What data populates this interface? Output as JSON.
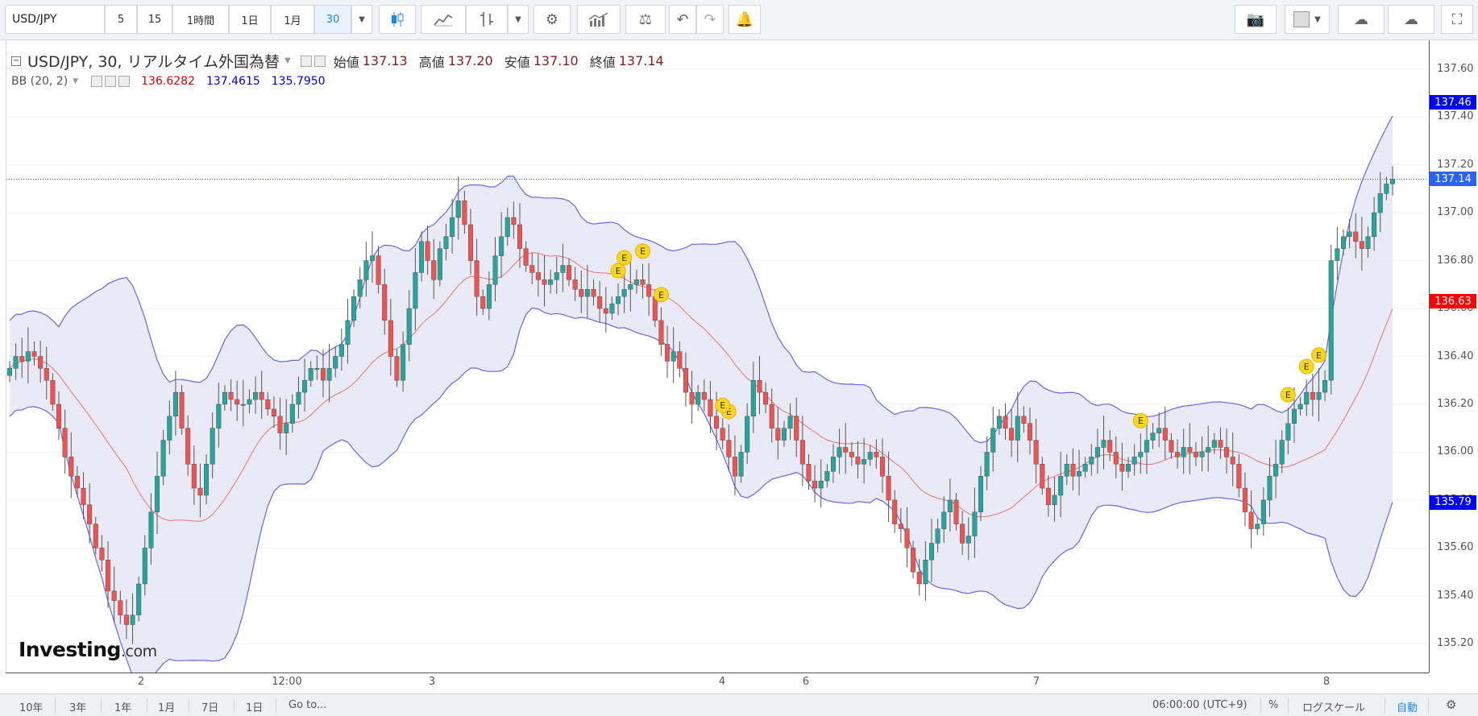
{
  "toolbar": {
    "symbol": "USD/JPY",
    "intervals": [
      "5",
      "15",
      "1時間",
      "1日",
      "1月",
      "30"
    ],
    "active_interval": "30"
  },
  "legend": {
    "title": "USD/JPY, 30, リアルタイム外国為替",
    "open_label": "始値",
    "open": "137.13",
    "high_label": "高値",
    "high": "137.20",
    "low_label": "安値",
    "low": "137.10",
    "close_label": "終値",
    "close": "137.14",
    "bb_label": "BB (20, 2)",
    "bb_mid": "136.6282",
    "bb_upper": "137.4615",
    "bb_lower": "135.7950"
  },
  "price_axis": {
    "ticks": [
      "137.60",
      "137.40",
      "137.20",
      "137.00",
      "136.80",
      "136.60",
      "136.40",
      "136.20",
      "136.00",
      "135.80",
      "135.60",
      "135.40",
      "135.20"
    ],
    "badges": [
      {
        "value": "137.46",
        "color": "#0000ff"
      },
      {
        "value": "137.14",
        "color": "#2962ff"
      },
      {
        "value": "136.63",
        "color": "#ff0000"
      },
      {
        "value": "135.79",
        "color": "#0000ff"
      }
    ]
  },
  "time_axis": {
    "labels": [
      "2",
      "12:00",
      "3",
      "4",
      "6",
      "7",
      "8"
    ]
  },
  "bottom": {
    "ranges": [
      "10年",
      "3年",
      "1年",
      "1月",
      "7日",
      "1日"
    ],
    "goto": "Go to...",
    "time": "06:00:00 (UTC+9)",
    "percent": "%",
    "log": "ログスケール",
    "auto": "自動"
  },
  "logo": {
    "brand": "Investing",
    "suffix": ".com"
  },
  "earnings_marker": "E",
  "colors": {
    "up": "#26a69a",
    "down": "#ef5350",
    "band_fill": "#dcdcf0",
    "band_line": "#6666ee",
    "basis": "#e57373"
  },
  "chart_data": {
    "type": "candlestick",
    "ylim": [
      135.08,
      137.72
    ],
    "close": [
      136.35,
      136.4,
      136.38,
      136.42,
      136.4,
      136.35,
      136.3,
      136.2,
      136.1,
      135.98,
      135.9,
      135.85,
      135.78,
      135.7,
      135.6,
      135.55,
      135.42,
      135.38,
      135.32,
      135.28,
      135.32,
      135.45,
      135.6,
      135.75,
      135.9,
      136.05,
      136.15,
      136.25,
      136.1,
      135.95,
      135.85,
      135.82,
      135.95,
      136.1,
      136.2,
      136.25,
      136.22,
      136.2,
      136.2,
      136.22,
      136.25,
      136.22,
      136.18,
      136.15,
      136.08,
      136.12,
      136.2,
      136.25,
      136.3,
      136.35,
      136.35,
      136.3,
      136.35,
      136.4,
      136.45,
      136.55,
      136.65,
      136.72,
      136.8,
      136.82,
      136.7,
      136.55,
      136.4,
      136.3,
      136.45,
      136.6,
      136.75,
      136.88,
      136.8,
      136.72,
      136.85,
      136.9,
      136.98,
      137.05,
      136.95,
      136.8,
      136.65,
      136.6,
      136.7,
      136.82,
      136.9,
      136.98,
      136.95,
      136.85,
      136.78,
      136.75,
      136.72,
      136.7,
      136.72,
      136.75,
      136.78,
      136.72,
      136.68,
      136.65,
      136.68,
      136.65,
      136.6,
      136.58,
      136.62,
      136.65,
      136.68,
      136.7,
      136.72,
      136.7,
      136.65,
      136.55,
      136.45,
      136.38,
      136.42,
      136.35,
      136.25,
      136.2,
      136.25,
      136.22,
      136.15,
      136.1,
      136.05,
      135.98,
      135.9,
      136.0,
      136.15,
      136.3,
      136.25,
      136.2,
      136.1,
      136.05,
      136.1,
      136.15,
      136.05,
      135.95,
      135.88,
      135.85,
      135.88,
      135.92,
      135.98,
      136.02,
      136.0,
      135.98,
      135.95,
      135.97,
      136.0,
      135.98,
      135.9,
      135.8,
      135.7,
      135.68,
      135.6,
      135.5,
      135.45,
      135.55,
      135.62,
      135.68,
      135.75,
      135.8,
      135.7,
      135.62,
      135.65,
      135.75,
      135.9,
      136.0,
      136.1,
      136.15,
      136.1,
      136.05,
      136.15,
      136.12,
      136.05,
      135.95,
      135.85,
      135.78,
      135.82,
      135.9,
      135.95,
      135.9,
      135.92,
      135.95,
      135.98,
      136.02,
      136.05,
      136.0,
      135.95,
      135.92,
      135.95,
      135.98,
      136.0,
      136.05,
      136.08,
      136.1,
      136.05,
      136.0,
      135.98,
      136.02,
      136.0,
      135.98,
      136.0,
      136.02,
      136.05,
      136.02,
      135.98,
      135.95,
      135.85,
      135.75,
      135.68,
      135.7,
      135.8,
      135.9,
      135.95,
      136.05,
      136.12,
      136.18,
      136.2,
      136.25,
      136.22,
      136.25,
      136.3,
      136.8,
      136.85,
      136.9,
      136.92,
      136.88,
      136.85,
      136.9,
      137.0,
      137.08,
      137.12,
      137.14
    ]
  }
}
